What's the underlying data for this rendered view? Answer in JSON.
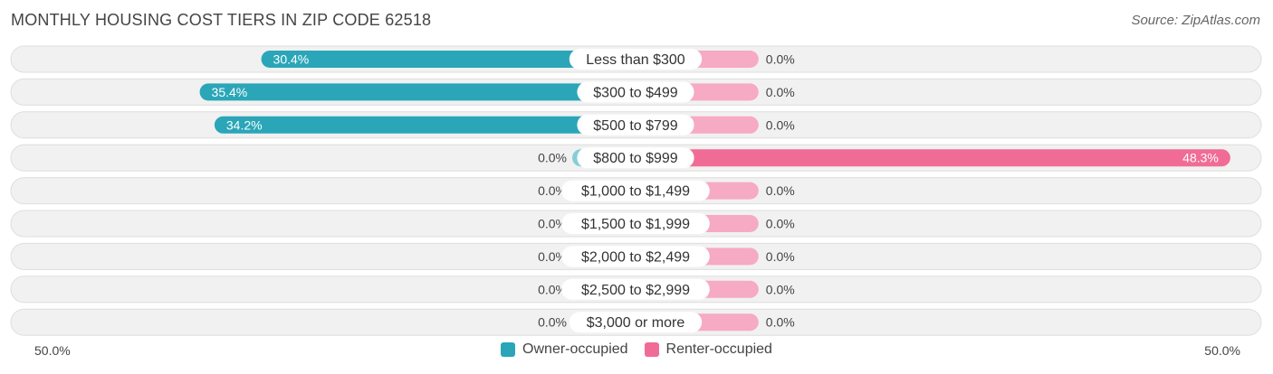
{
  "header": {
    "title": "MONTHLY HOUSING COST TIERS IN ZIP CODE 62518",
    "source": "Source: ZipAtlas.com"
  },
  "colors": {
    "owner": "#2aa6b8",
    "owner_light": "#86cdd7",
    "renter": "#f06c96",
    "renter_light": "#f6aac3",
    "row_bg": "#f1f1f1",
    "row_border": "#dedede"
  },
  "chart_data": {
    "type": "bar",
    "orientation": "horizontal-diverging",
    "categories": [
      "Less than $300",
      "$300 to $499",
      "$500 to $799",
      "$800 to $999",
      "$1,000 to $1,499",
      "$1,500 to $1,999",
      "$2,000 to $2,499",
      "$2,500 to $2,999",
      "$3,000 or more"
    ],
    "series": [
      {
        "name": "Owner-occupied",
        "values": [
          30.4,
          35.4,
          34.2,
          0.0,
          0.0,
          0.0,
          0.0,
          0.0,
          0.0
        ],
        "labels": [
          "30.4%",
          "35.4%",
          "34.2%",
          "0.0%",
          "0.0%",
          "0.0%",
          "0.0%",
          "0.0%",
          "0.0%"
        ]
      },
      {
        "name": "Renter-occupied",
        "values": [
          0.0,
          0.0,
          0.0,
          48.3,
          0.0,
          0.0,
          0.0,
          0.0,
          0.0
        ],
        "labels": [
          "0.0%",
          "0.0%",
          "0.0%",
          "48.3%",
          "0.0%",
          "0.0%",
          "0.0%",
          "0.0%",
          "0.0%"
        ]
      }
    ],
    "xlim": [
      -50,
      50
    ],
    "axis_labels": {
      "left": "50.0%",
      "right": "50.0%"
    },
    "legend_position": "bottom-center"
  }
}
